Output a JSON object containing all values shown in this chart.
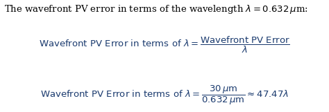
{
  "background_color": "#ffffff",
  "intro_line1": "The wavefront PV error in terms of the wavelength $\\lambda = 0.632\\,\\mu$m:",
  "eq1_full": "$\\mathrm{Wavefront\\ PV\\ Error\\ in\\ terms\\ of\\ }\\lambda = \\dfrac{\\mathrm{Wavefront\\ PV\\ Error}}{\\lambda}$",
  "eq2_full": "$\\mathrm{Wavefront\\ PV\\ Error\\ in\\ terms\\ of\\ }\\lambda = \\dfrac{30\\,\\mu\\mathrm{m}}{0.632\\,\\mu\\mathrm{m}} \\approx 47.47\\lambda$",
  "text_color": "#1a3a6e",
  "intro_color": "#000000",
  "fontsize_intro": 9.5,
  "fontsize_eq1": 9.5,
  "fontsize_eq2": 9.5
}
